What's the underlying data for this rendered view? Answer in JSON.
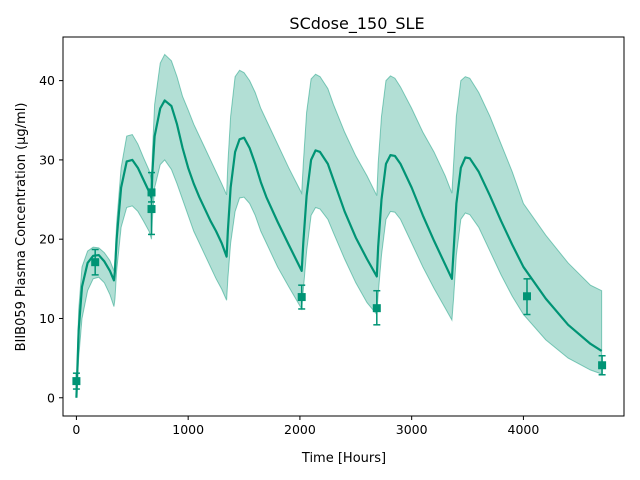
{
  "chart_data": {
    "type": "line",
    "title": "SCdose_150_SLE",
    "xlabel": "Time [Hours]",
    "ylabel": "BIIB059 Plasma Concentration (µg/ml)",
    "xlim": [
      -120,
      4900
    ],
    "ylim": [
      -2.3,
      45.5
    ],
    "xticks": [
      0,
      1000,
      2000,
      3000,
      4000
    ],
    "yticks": [
      0,
      10,
      20,
      30,
      40
    ],
    "grid": false,
    "colors": {
      "line": "#009475",
      "band": "#009475",
      "band_opacity": 0.3,
      "points": "#009475"
    },
    "dose_times": [
      0,
      336,
      672,
      1344,
      2016,
      2688,
      3360
    ],
    "series": [
      {
        "kind": "median",
        "x": [
          0,
          20,
          50,
          100,
          150,
          200,
          250,
          300,
          336,
          345,
          360,
          400,
          450,
          500,
          550,
          600,
          650,
          672,
          680,
          700,
          750,
          790,
          850,
          900,
          950,
          1000,
          1050,
          1100,
          1150,
          1200,
          1250,
          1300,
          1344,
          1355,
          1380,
          1420,
          1460,
          1500,
          1550,
          1600,
          1650,
          1700,
          1800,
          1900,
          2016,
          2030,
          2060,
          2100,
          2140,
          2180,
          2250,
          2300,
          2400,
          2500,
          2600,
          2688,
          2700,
          2730,
          2770,
          2810,
          2850,
          2900,
          3000,
          3100,
          3200,
          3300,
          3360,
          3375,
          3400,
          3440,
          3480,
          3520,
          3600,
          3700,
          3800,
          3900,
          4000,
          4200,
          4400,
          4600,
          4700
        ],
        "y": [
          0,
          8.5,
          14,
          17,
          17.9,
          18,
          17.2,
          16,
          14.8,
          16,
          20,
          26.5,
          29.8,
          30,
          29,
          27.5,
          26,
          25.2,
          28.5,
          33,
          36.5,
          37.5,
          36.8,
          34.5,
          31.5,
          29,
          27,
          25.3,
          23.8,
          22.3,
          21,
          19.5,
          17.8,
          21,
          26.5,
          31,
          32.6,
          32.8,
          31.5,
          29.5,
          27.2,
          25.3,
          22.2,
          19.3,
          16,
          19.5,
          25.5,
          30,
          31.2,
          31,
          29.5,
          27.5,
          23.5,
          20.2,
          17.5,
          15.3,
          19,
          25,
          29.5,
          30.6,
          30.5,
          29.5,
          26.5,
          23,
          19.8,
          16.8,
          15,
          18.5,
          24.5,
          29,
          30.3,
          30.2,
          28.5,
          25.5,
          22.3,
          19.3,
          16.5,
          12.5,
          9.2,
          6.8,
          5.9
        ]
      },
      {
        "kind": "upper",
        "x": [
          0,
          20,
          50,
          100,
          150,
          200,
          250,
          300,
          336,
          345,
          360,
          400,
          450,
          500,
          550,
          600,
          650,
          672,
          680,
          700,
          750,
          790,
          850,
          900,
          950,
          1000,
          1050,
          1100,
          1150,
          1200,
          1250,
          1300,
          1344,
          1355,
          1380,
          1420,
          1460,
          1500,
          1550,
          1600,
          1650,
          1700,
          1800,
          1900,
          2016,
          2030,
          2060,
          2100,
          2140,
          2180,
          2250,
          2300,
          2400,
          2500,
          2600,
          2688,
          2700,
          2730,
          2770,
          2810,
          2850,
          2900,
          3000,
          3100,
          3200,
          3300,
          3360,
          3375,
          3400,
          3440,
          3480,
          3520,
          3600,
          3700,
          3800,
          3900,
          4000,
          4200,
          4400,
          4600,
          4700
        ],
        "y": [
          0.5,
          11,
          16.5,
          18.5,
          19,
          18.9,
          18.3,
          17.3,
          16,
          17.5,
          22,
          29,
          33,
          33.2,
          32,
          30.3,
          28.7,
          27.5,
          31,
          37,
          42.2,
          43.3,
          42.5,
          40.5,
          38,
          36.3,
          34.5,
          33,
          31.5,
          30,
          28.5,
          27,
          25.6,
          29.5,
          35.5,
          40.5,
          41.3,
          41,
          40,
          38.5,
          36.5,
          35,
          32,
          29,
          25.8,
          29.5,
          36,
          40.2,
          40.8,
          40.5,
          39,
          37,
          33.5,
          30.5,
          28,
          25.5,
          29.5,
          35.5,
          40,
          40.6,
          40.3,
          39.2,
          36.5,
          33.5,
          31,
          28,
          25.8,
          29.5,
          35.5,
          40,
          40.5,
          40.3,
          38.5,
          35.5,
          32,
          28.5,
          24.5,
          20.5,
          17,
          14.2,
          13.5
        ]
      },
      {
        "kind": "lower",
        "x": [
          0,
          20,
          50,
          100,
          150,
          200,
          250,
          300,
          336,
          345,
          360,
          400,
          450,
          500,
          550,
          600,
          650,
          672,
          680,
          700,
          750,
          790,
          850,
          900,
          950,
          1000,
          1050,
          1100,
          1150,
          1200,
          1250,
          1300,
          1344,
          1355,
          1380,
          1420,
          1460,
          1500,
          1550,
          1600,
          1650,
          1700,
          1800,
          1900,
          2016,
          2030,
          2060,
          2100,
          2140,
          2180,
          2250,
          2300,
          2400,
          2500,
          2600,
          2688,
          2700,
          2730,
          2770,
          2810,
          2850,
          2900,
          3000,
          3100,
          3200,
          3300,
          3360,
          3375,
          3400,
          3440,
          3480,
          3520,
          3600,
          3700,
          3800,
          3900,
          4000,
          4200,
          4400,
          4600,
          4700
        ],
        "y": [
          0,
          5,
          10,
          13.5,
          15,
          15.2,
          14.5,
          13,
          11.5,
          12.5,
          16,
          21.5,
          24,
          24.2,
          23.5,
          22.3,
          21,
          20,
          22.5,
          26.5,
          29.4,
          30,
          28.8,
          27,
          25,
          23,
          21,
          19.5,
          18,
          16.5,
          15,
          13.7,
          12.3,
          15,
          19.5,
          23.5,
          25.2,
          25.3,
          24.5,
          23,
          21,
          19.5,
          16.5,
          14,
          11.2,
          13.5,
          18.5,
          23,
          24,
          23.8,
          22.5,
          20.8,
          17.5,
          14.5,
          12,
          10.5,
          13,
          18,
          22.5,
          23.5,
          23.4,
          22.5,
          19.5,
          16.5,
          13.8,
          11.3,
          9.8,
          12.5,
          18,
          22.5,
          23.3,
          23.1,
          21.5,
          18.5,
          15.5,
          12.8,
          10.5,
          7.3,
          5,
          3.5,
          3.0
        ]
      }
    ],
    "observations": {
      "x": [
        0,
        168,
        672,
        672,
        2016,
        2688,
        4032,
        4704
      ],
      "y": [
        2.1,
        17.1,
        25.9,
        23.8,
        12.7,
        11.3,
        12.8,
        4.1
      ],
      "yerr_low": [
        1.0,
        1.6,
        1.2,
        3.2,
        1.5,
        2.1,
        2.3,
        1.2
      ],
      "yerr_high": [
        1.0,
        1.6,
        2.5,
        2.4,
        1.5,
        2.2,
        2.2,
        1.2
      ]
    }
  }
}
